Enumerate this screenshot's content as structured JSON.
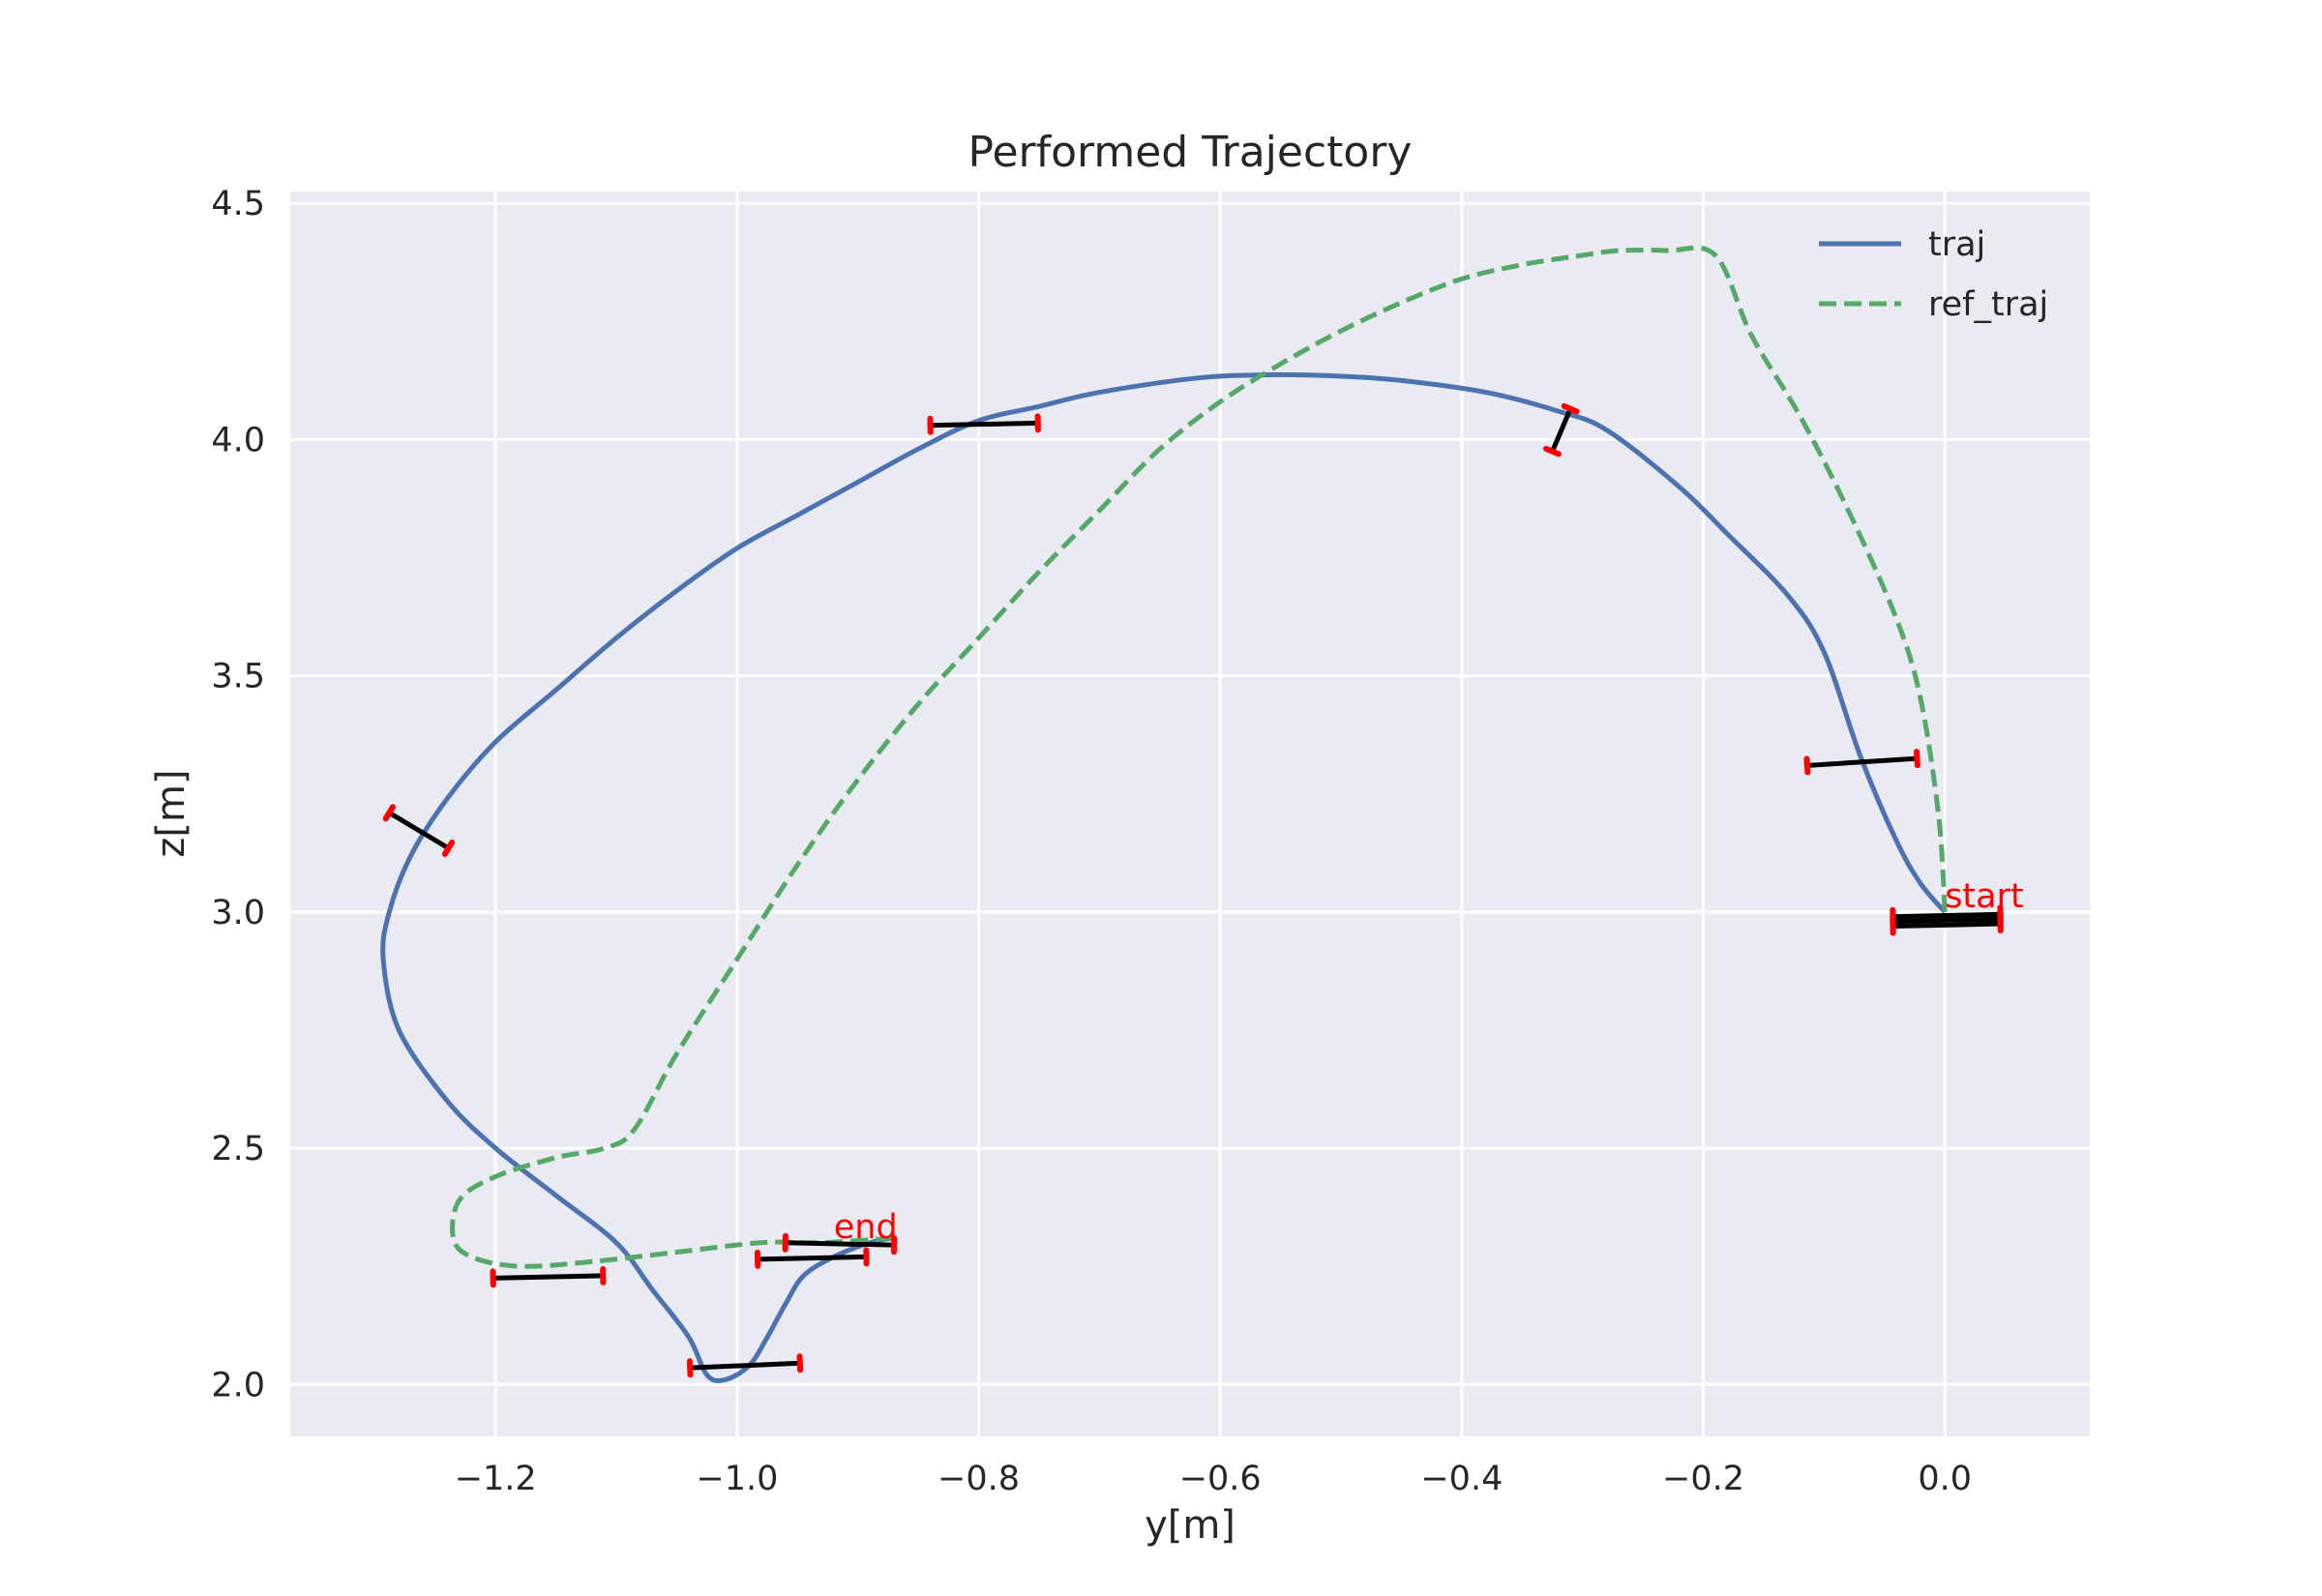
{
  "chart_data": {
    "type": "line",
    "title": "Performed Trajectory",
    "xlabel": "y[m]",
    "ylabel": "z[m]",
    "xlim": [
      -1.37,
      0.12
    ],
    "ylim": [
      1.89,
      4.525
    ],
    "xticks": [
      -1.2,
      -1.0,
      -0.8,
      -0.6,
      -0.4,
      -0.2,
      0.0
    ],
    "xtick_labels": [
      "−1.2",
      "−1.0",
      "−0.8",
      "−0.6",
      "−0.4",
      "−0.2",
      "0.0"
    ],
    "yticks": [
      2.0,
      2.5,
      3.0,
      3.5,
      4.0,
      4.5
    ],
    "ytick_labels": [
      "2.0",
      "2.5",
      "3.0",
      "3.5",
      "4.0",
      "4.5"
    ],
    "grid": true,
    "background_color": "#eaeaf2",
    "legend_position": "upper-right",
    "series": [
      {
        "name": "traj",
        "color": "#4c72b0",
        "style": "solid",
        "points": [
          [
            0.0,
            3.0
          ],
          [
            -0.02,
            3.06
          ],
          [
            -0.04,
            3.15
          ],
          [
            -0.07,
            3.33
          ],
          [
            -0.1,
            3.55
          ],
          [
            -0.13,
            3.67
          ],
          [
            -0.18,
            3.8
          ],
          [
            -0.22,
            3.9
          ],
          [
            -0.28,
            4.02
          ],
          [
            -0.32,
            4.06
          ],
          [
            -0.38,
            4.1
          ],
          [
            -0.45,
            4.125
          ],
          [
            -0.5,
            4.134
          ],
          [
            -0.56,
            4.137
          ],
          [
            -0.62,
            4.13
          ],
          [
            -0.7,
            4.1
          ],
          [
            -0.75,
            4.07
          ],
          [
            -0.8,
            4.04
          ],
          [
            -0.85,
            3.98
          ],
          [
            -0.9,
            3.91
          ],
          [
            -0.95,
            3.84
          ],
          [
            -1.0,
            3.77
          ],
          [
            -1.05,
            3.68
          ],
          [
            -1.1,
            3.58
          ],
          [
            -1.15,
            3.47
          ],
          [
            -1.2,
            3.36
          ],
          [
            -1.24,
            3.24
          ],
          [
            -1.27,
            3.12
          ],
          [
            -1.288,
            3.0
          ],
          [
            -1.293,
            2.9
          ],
          [
            -1.28,
            2.75
          ],
          [
            -1.24,
            2.6
          ],
          [
            -1.2,
            2.5
          ],
          [
            -1.15,
            2.4
          ],
          [
            -1.1,
            2.3
          ],
          [
            -1.07,
            2.2
          ],
          [
            -1.04,
            2.1
          ],
          [
            -1.025,
            2.02
          ],
          [
            -1.01,
            2.01
          ],
          [
            -0.99,
            2.04
          ],
          [
            -0.975,
            2.1
          ],
          [
            -0.96,
            2.17
          ],
          [
            -0.945,
            2.23
          ],
          [
            -0.92,
            2.27
          ],
          [
            -0.89,
            2.3
          ],
          [
            -0.87,
            2.31
          ]
        ]
      },
      {
        "name": "ref_traj",
        "color": "#55a868",
        "style": "dashed",
        "points": [
          [
            0.0,
            3.0
          ],
          [
            -0.005,
            3.2
          ],
          [
            -0.02,
            3.45
          ],
          [
            -0.04,
            3.62
          ],
          [
            -0.08,
            3.85
          ],
          [
            -0.12,
            4.05
          ],
          [
            -0.16,
            4.22
          ],
          [
            -0.19,
            4.39
          ],
          [
            -0.23,
            4.4
          ],
          [
            -0.27,
            4.4
          ],
          [
            -0.3,
            4.39
          ],
          [
            -0.35,
            4.37
          ],
          [
            -0.4,
            4.34
          ],
          [
            -0.45,
            4.29
          ],
          [
            -0.5,
            4.23
          ],
          [
            -0.55,
            4.16
          ],
          [
            -0.6,
            4.08
          ],
          [
            -0.65,
            3.98
          ],
          [
            -0.7,
            3.85
          ],
          [
            -0.75,
            3.72
          ],
          [
            -0.8,
            3.58
          ],
          [
            -0.85,
            3.44
          ],
          [
            -0.9,
            3.28
          ],
          [
            -0.95,
            3.1
          ],
          [
            -1.0,
            2.9
          ],
          [
            -1.05,
            2.7
          ],
          [
            -1.085,
            2.54
          ],
          [
            -1.11,
            2.5
          ],
          [
            -1.15,
            2.48
          ],
          [
            -1.2,
            2.44
          ],
          [
            -1.23,
            2.39
          ],
          [
            -1.235,
            2.31
          ],
          [
            -1.22,
            2.27
          ],
          [
            -1.18,
            2.25
          ],
          [
            -1.12,
            2.26
          ],
          [
            -1.05,
            2.28
          ],
          [
            -0.98,
            2.3
          ],
          [
            -0.93,
            2.3
          ],
          [
            -0.87,
            2.31
          ]
        ]
      }
    ],
    "attitude_markers": {
      "bar_color": "#000000",
      "tip_color": "#ff0000",
      "segments": [
        [
          [
            -0.043,
            2.97
          ],
          [
            0.046,
            2.975
          ]
        ],
        [
          [
            -0.043,
            2.99
          ],
          [
            0.046,
            2.995
          ]
        ],
        [
          [
            -0.043,
            2.98
          ],
          [
            0.046,
            2.985
          ]
        ],
        [
          [
            -0.114,
            3.31
          ],
          [
            -0.023,
            3.325
          ]
        ],
        [
          [
            -0.31,
            4.065
          ],
          [
            -0.325,
            3.975
          ]
        ],
        [
          [
            -0.84,
            4.03
          ],
          [
            -0.751,
            4.035
          ]
        ],
        [
          [
            -1.288,
            3.21
          ],
          [
            -1.239,
            3.135
          ]
        ],
        [
          [
            -1.202,
            2.225
          ],
          [
            -1.111,
            2.23
          ]
        ],
        [
          [
            -1.039,
            2.035
          ],
          [
            -0.948,
            2.045
          ]
        ],
        [
          [
            -0.983,
            2.265
          ],
          [
            -0.893,
            2.27
          ]
        ],
        [
          [
            -0.96,
            2.3
          ],
          [
            -0.87,
            2.295
          ]
        ]
      ]
    },
    "annotations": [
      {
        "text": "start",
        "x": 0.0,
        "y": 3.01,
        "color": "#ff0000"
      },
      {
        "text": "end",
        "x": -0.92,
        "y": 2.31,
        "color": "#ff0000"
      }
    ]
  }
}
